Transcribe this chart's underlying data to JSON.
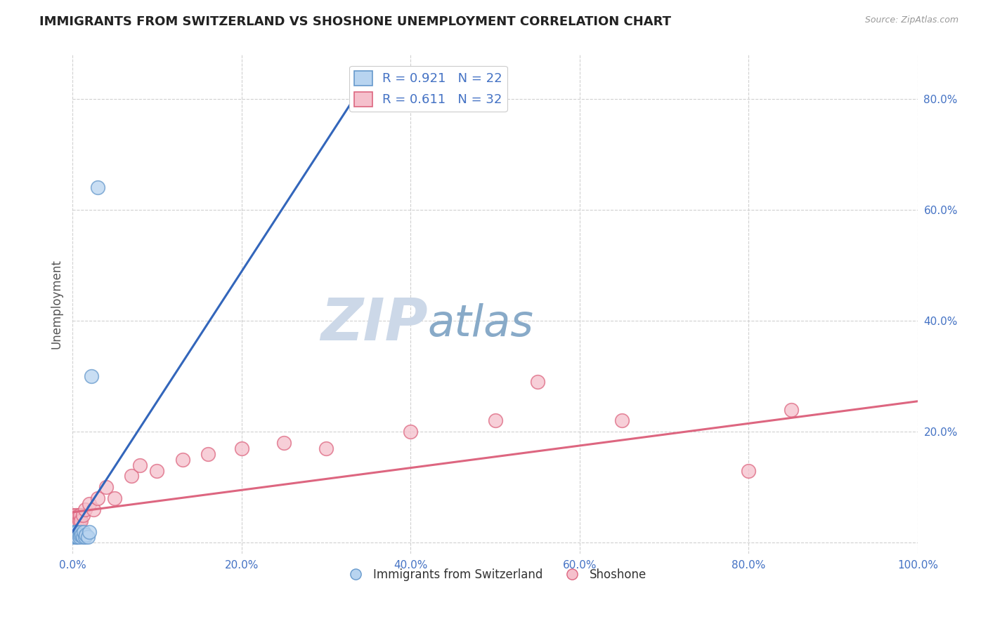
{
  "title": "IMMIGRANTS FROM SWITZERLAND VS SHOSHONE UNEMPLOYMENT CORRELATION CHART",
  "source": "Source: ZipAtlas.com",
  "ylabel": "Unemployment",
  "watermark_zip": "ZIP",
  "watermark_atlas": "atlas",
  "xlim": [
    0,
    1.0
  ],
  "ylim": [
    -0.02,
    0.88
  ],
  "xticks": [
    0.0,
    0.2,
    0.4,
    0.6,
    0.8,
    1.0
  ],
  "yticks": [
    0.0,
    0.2,
    0.4,
    0.6,
    0.8
  ],
  "xtick_labels": [
    "0.0%",
    "20.0%",
    "40.0%",
    "60.0%",
    "80.0%",
    "100.0%"
  ],
  "ytick_labels": [
    "",
    "20.0%",
    "40.0%",
    "60.0%",
    "80.0%"
  ],
  "background_color": "#ffffff",
  "grid_color": "#d0d0d0",
  "series": [
    {
      "name": "Immigrants from Switzerland",
      "color": "#b8d4f0",
      "edge_color": "#6699cc",
      "R": 0.921,
      "N": 22,
      "x": [
        0.0,
        0.001,
        0.002,
        0.003,
        0.003,
        0.004,
        0.005,
        0.005,
        0.006,
        0.007,
        0.008,
        0.009,
        0.01,
        0.011,
        0.012,
        0.013,
        0.015,
        0.016,
        0.018,
        0.02,
        0.022,
        0.03
      ],
      "y": [
        0.01,
        0.02,
        0.015,
        0.01,
        0.015,
        0.02,
        0.01,
        0.02,
        0.01,
        0.015,
        0.01,
        0.015,
        0.02,
        0.015,
        0.01,
        0.02,
        0.01,
        0.015,
        0.01,
        0.02,
        0.3,
        0.64
      ],
      "trend_color": "#3366bb",
      "trend_x": [
        0.0,
        0.35
      ],
      "trend_y": [
        0.02,
        0.84
      ]
    },
    {
      "name": "Shoshone",
      "color": "#f5c0cc",
      "edge_color": "#dd6680",
      "R": 0.611,
      "N": 32,
      "x": [
        0.0,
        0.001,
        0.002,
        0.003,
        0.004,
        0.005,
        0.006,
        0.007,
        0.008,
        0.009,
        0.01,
        0.012,
        0.015,
        0.02,
        0.025,
        0.03,
        0.04,
        0.05,
        0.07,
        0.08,
        0.1,
        0.13,
        0.16,
        0.2,
        0.25,
        0.3,
        0.4,
        0.5,
        0.55,
        0.65,
        0.8,
        0.85
      ],
      "y": [
        0.05,
        0.04,
        0.03,
        0.04,
        0.05,
        0.04,
        0.03,
        0.05,
        0.04,
        0.05,
        0.04,
        0.05,
        0.06,
        0.07,
        0.06,
        0.08,
        0.1,
        0.08,
        0.12,
        0.14,
        0.13,
        0.15,
        0.16,
        0.17,
        0.18,
        0.17,
        0.2,
        0.22,
        0.29,
        0.22,
        0.13,
        0.24
      ],
      "trend_color": "#dd6680",
      "trend_x": [
        0.0,
        1.0
      ],
      "trend_y": [
        0.055,
        0.255
      ]
    }
  ],
  "legend_r1": "R = 0.921",
  "legend_n1": "N = 22",
  "legend_r2": "R = 0.611",
  "legend_n2": "N = 32",
  "legend_color": "#4472c4",
  "title_color": "#222222",
  "title_fontsize": 13,
  "axis_label_color": "#555555",
  "tick_color": "#4472c4",
  "watermark_zip_color": "#ccd8e8",
  "watermark_atlas_color": "#88aac8",
  "watermark_fontsize": 60
}
